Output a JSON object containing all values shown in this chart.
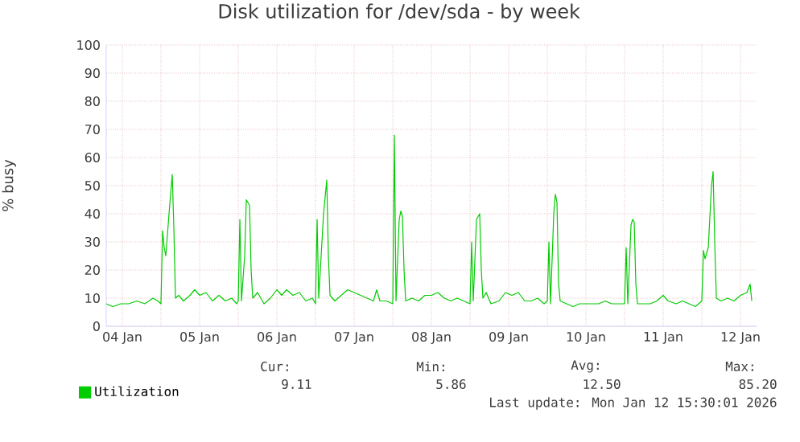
{
  "chart_data": {
    "type": "line",
    "title": "Disk utilization for /dev/sda - by week",
    "ylabel": "% busy",
    "xlim": [
      "2026-01-04T07:00",
      "2026-01-12T17:00"
    ],
    "xticks": [
      {
        "value": "2026-01-04T12:00",
        "label": "04 Jan"
      },
      {
        "value": "2026-01-05T00:00",
        "label": null
      },
      {
        "value": "2026-01-05T12:00",
        "label": "05 Jan"
      },
      {
        "value": "2026-01-06T00:00",
        "label": null
      },
      {
        "value": "2026-01-06T12:00",
        "label": "06 Jan"
      },
      {
        "value": "2026-01-07T00:00",
        "label": null
      },
      {
        "value": "2026-01-07T12:00",
        "label": "07 Jan"
      },
      {
        "value": "2026-01-08T00:00",
        "label": null
      },
      {
        "value": "2026-01-08T12:00",
        "label": "08 Jan"
      },
      {
        "value": "2026-01-09T00:00",
        "label": null
      },
      {
        "value": "2026-01-09T12:00",
        "label": "09 Jan"
      },
      {
        "value": "2026-01-10T00:00",
        "label": null
      },
      {
        "value": "2026-01-10T12:00",
        "label": "10 Jan"
      },
      {
        "value": "2026-01-11T00:00",
        "label": null
      },
      {
        "value": "2026-01-11T12:00",
        "label": "11 Jan"
      },
      {
        "value": "2026-01-12T00:00",
        "label": null
      },
      {
        "value": "2026-01-12T12:00",
        "label": "12 Jan"
      }
    ],
    "ylim": [
      0,
      100
    ],
    "yticks": [
      0,
      10,
      20,
      30,
      40,
      50,
      60,
      70,
      80,
      90,
      100
    ],
    "grid": true,
    "legend": "bottom",
    "marker": "none",
    "line_style": "solid",
    "x": [
      "2026-01-04T07:00",
      "2026-01-04T09:00",
      "2026-01-04T11:30",
      "2026-01-04T14:00",
      "2026-01-04T16:30",
      "2026-01-04T19:00",
      "2026-01-04T21:30",
      "2026-01-04T23:00",
      "2026-01-05T00:00",
      "2026-01-05T00:30",
      "2026-01-05T01:00",
      "2026-01-05T01:30",
      "2026-01-05T02:30",
      "2026-01-05T03:30",
      "2026-01-05T04:00",
      "2026-01-05T04:30",
      "2026-01-05T05:30",
      "2026-01-05T07:00",
      "2026-01-05T09:00",
      "2026-01-05T10:30",
      "2026-01-05T12:00",
      "2026-01-05T14:00",
      "2026-01-05T16:00",
      "2026-01-05T18:00",
      "2026-01-05T20:00",
      "2026-01-05T22:00",
      "2026-01-05T23:30",
      "2026-01-06T00:00",
      "2026-01-06T00:30",
      "2026-01-06T01:00",
      "2026-01-06T02:00",
      "2026-01-06T02:30",
      "2026-01-06T03:30",
      "2026-01-06T04:00",
      "2026-01-06T04:30",
      "2026-01-06T06:00",
      "2026-01-06T08:00",
      "2026-01-06T10:00",
      "2026-01-06T12:00",
      "2026-01-06T13:30",
      "2026-01-06T15:00",
      "2026-01-06T17:00",
      "2026-01-06T19:00",
      "2026-01-06T21:00",
      "2026-01-06T23:00",
      "2026-01-07T00:00",
      "2026-01-07T00:30",
      "2026-01-07T01:00",
      "2026-01-07T02:30",
      "2026-01-07T03:30",
      "2026-01-07T04:00",
      "2026-01-07T04:30",
      "2026-01-07T06:00",
      "2026-01-07T08:00",
      "2026-01-07T10:00",
      "2026-01-07T12:00",
      "2026-01-07T14:00",
      "2026-01-07T16:00",
      "2026-01-07T18:00",
      "2026-01-07T19:00",
      "2026-01-07T20:00",
      "2026-01-07T22:00",
      "2026-01-08T00:00",
      "2026-01-08T00:30",
      "2026-01-08T01:00",
      "2026-01-08T02:00",
      "2026-01-08T02:30",
      "2026-01-08T03:00",
      "2026-01-08T03:30",
      "2026-01-08T04:00",
      "2026-01-08T06:00",
      "2026-01-08T08:00",
      "2026-01-08T10:00",
      "2026-01-08T12:00",
      "2026-01-08T14:00",
      "2026-01-08T16:00",
      "2026-01-08T18:00",
      "2026-01-08T20:00",
      "2026-01-08T22:00",
      "2026-01-09T00:00",
      "2026-01-09T00:30",
      "2026-01-09T01:00",
      "2026-01-09T02:00",
      "2026-01-09T03:00",
      "2026-01-09T03:30",
      "2026-01-09T04:00",
      "2026-01-09T05:00",
      "2026-01-09T06:30",
      "2026-01-09T09:00",
      "2026-01-09T11:00",
      "2026-01-09T13:00",
      "2026-01-09T15:00",
      "2026-01-09T17:00",
      "2026-01-09T19:00",
      "2026-01-09T21:00",
      "2026-01-09T23:00",
      "2026-01-10T00:00",
      "2026-01-10T00:30",
      "2026-01-10T01:00",
      "2026-01-10T02:00",
      "2026-01-10T02:30",
      "2026-01-10T03:00",
      "2026-01-10T03:30",
      "2026-01-10T04:00",
      "2026-01-10T06:00",
      "2026-01-10T08:00",
      "2026-01-10T10:00",
      "2026-01-10T12:00",
      "2026-01-10T14:00",
      "2026-01-10T16:00",
      "2026-01-10T18:00",
      "2026-01-10T20:00",
      "2026-01-10T22:00",
      "2026-01-11T00:00",
      "2026-01-11T00:30",
      "2026-01-11T01:00",
      "2026-01-11T02:00",
      "2026-01-11T02:30",
      "2026-01-11T03:00",
      "2026-01-11T03:30",
      "2026-01-11T04:00",
      "2026-01-11T06:00",
      "2026-01-11T08:00",
      "2026-01-11T10:00",
      "2026-01-11T12:00",
      "2026-01-11T13:30",
      "2026-01-11T16:00",
      "2026-01-11T18:00",
      "2026-01-11T20:00",
      "2026-01-11T22:00",
      "2026-01-12T00:00",
      "2026-01-12T00:30",
      "2026-01-12T01:00",
      "2026-01-12T02:00",
      "2026-01-12T03:00",
      "2026-01-12T03:30",
      "2026-01-12T04:00",
      "2026-01-12T04:30",
      "2026-01-12T06:00",
      "2026-01-12T08:00",
      "2026-01-12T10:00",
      "2026-01-12T12:00",
      "2026-01-12T14:00",
      "2026-01-12T15:00",
      "2026-01-12T15:30"
    ],
    "series": [
      {
        "name": "Utilization",
        "color": "#00cc00",
        "values": [
          8,
          7,
          8,
          8,
          9,
          8,
          10,
          9,
          8,
          34,
          28,
          25,
          40,
          54,
          35,
          10,
          11,
          9,
          11,
          13,
          11,
          12,
          9,
          11,
          9,
          10,
          8,
          9,
          38,
          9,
          25,
          45,
          43,
          20,
          10,
          12,
          8,
          10,
          13,
          11,
          13,
          11,
          12,
          9,
          10,
          8,
          38,
          10,
          40,
          52,
          25,
          11,
          9,
          11,
          13,
          12,
          11,
          10,
          9,
          13,
          9,
          9,
          8,
          68,
          9,
          38,
          41,
          39,
          20,
          9,
          10,
          9,
          11,
          11,
          12,
          10,
          9,
          10,
          9,
          8,
          30,
          9,
          38,
          40,
          20,
          10,
          12,
          8,
          9,
          12,
          11,
          12,
          9,
          9,
          10,
          8,
          9,
          30,
          8,
          40,
          47,
          44,
          15,
          9,
          8,
          7,
          8,
          8,
          8,
          8,
          9,
          8,
          8,
          8,
          28,
          8,
          36,
          38,
          37,
          15,
          8,
          8,
          8,
          9,
          11,
          9,
          8,
          9,
          8,
          7,
          9,
          27,
          24,
          28,
          50,
          55,
          30,
          10,
          9,
          10,
          9,
          11,
          12,
          15,
          9
        ]
      }
    ],
    "annotations": [
      "Cur:",
      "Min:",
      "Avg:",
      "Max:",
      "9.11",
      "5.86",
      "12.50",
      "85.20",
      "Last update: Mon Jan 12 15:30:01 2026"
    ]
  }
}
